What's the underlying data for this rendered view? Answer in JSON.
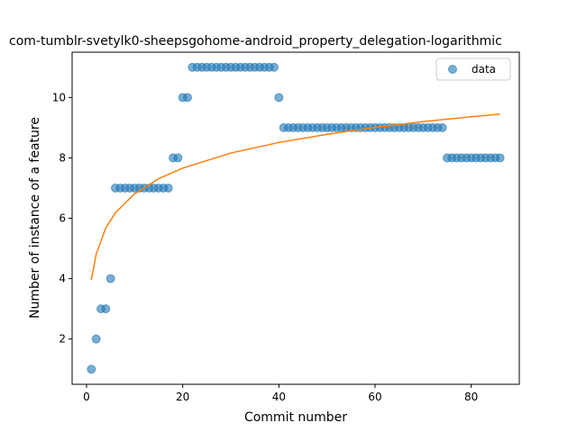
{
  "chart_data": {
    "type": "scatter",
    "title": "com-tumblr-svetylk0-sheepsgohome-android_property_delegation-logarithmic",
    "xlabel": "Commit number",
    "ylabel": "Number of instance of a feature",
    "xlim": [
      -3,
      90
    ],
    "ylim": [
      0.5,
      11.5
    ],
    "xticks": [
      0,
      20,
      40,
      60,
      80
    ],
    "yticks": [
      2,
      4,
      6,
      8,
      10
    ],
    "grid": false,
    "legend_position": "top-right",
    "series": [
      {
        "name": "data",
        "kind": "scatter",
        "color": "#1f77b4",
        "x": [
          1,
          2,
          3,
          4,
          5,
          6,
          7,
          8,
          9,
          10,
          11,
          12,
          13,
          14,
          15,
          16,
          17,
          18,
          19,
          20,
          21,
          22,
          23,
          24,
          25,
          26,
          27,
          28,
          29,
          30,
          31,
          32,
          33,
          34,
          35,
          36,
          37,
          38,
          39,
          40,
          41,
          42,
          43,
          44,
          45,
          46,
          47,
          48,
          49,
          50,
          51,
          52,
          53,
          54,
          55,
          56,
          57,
          58,
          59,
          60,
          61,
          62,
          63,
          64,
          65,
          66,
          67,
          68,
          69,
          70,
          71,
          72,
          73,
          74,
          75,
          76,
          77,
          78,
          79,
          80,
          81,
          82,
          83,
          84,
          85,
          86
        ],
        "y": [
          1,
          2,
          3,
          3,
          4,
          7,
          7,
          7,
          7,
          7,
          7,
          7,
          7,
          7,
          7,
          7,
          7,
          8,
          8,
          10,
          10,
          11,
          11,
          11,
          11,
          11,
          11,
          11,
          11,
          11,
          11,
          11,
          11,
          11,
          11,
          11,
          11,
          11,
          11,
          10,
          9,
          9,
          9,
          9,
          9,
          9,
          9,
          9,
          9,
          9,
          9,
          9,
          9,
          9,
          9,
          9,
          9,
          9,
          9,
          9,
          9,
          9,
          9,
          9,
          9,
          9,
          9,
          9,
          9,
          9,
          9,
          9,
          9,
          9,
          8,
          8,
          8,
          8,
          8,
          8,
          8,
          8,
          8,
          8,
          8,
          8
        ]
      },
      {
        "kind": "line",
        "color": "#ff7f0e",
        "fit": "logarithmic",
        "x": [
          1,
          2,
          4,
          6,
          10,
          15,
          20,
          30,
          40,
          50,
          60,
          70,
          80,
          86
        ],
        "y": [
          3.96,
          4.81,
          5.68,
          6.18,
          6.81,
          7.31,
          7.66,
          8.16,
          8.51,
          8.78,
          9.01,
          9.2,
          9.36,
          9.45
        ]
      }
    ]
  }
}
